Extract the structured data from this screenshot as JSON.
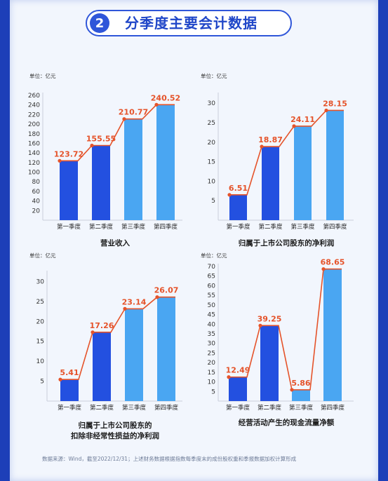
{
  "header": {
    "number": "2",
    "title": "分季度主要会计数据"
  },
  "footnote": "数据来源：Wind，截至2022/12/31；上述财务数据根据指数每季度末的成份股权重和季报数据加权计算形成",
  "colors": {
    "dark_bar": "#2350e0",
    "light_bar": "#4aa6f2",
    "line": "#e5532a",
    "accent": "#2f56d9"
  },
  "chart_data": [
    {
      "type": "bar",
      "unit": "单位：亿元",
      "title": [
        "营业收入"
      ],
      "categories": [
        "第一季度",
        "第二季度",
        "第三季度",
        "第四季度"
      ],
      "values": [
        123.72,
        155.55,
        210.77,
        240.52
      ],
      "value_labels": [
        "123.72",
        "155.55",
        "210.77",
        "240.52"
      ],
      "yticks": [
        "20",
        "40",
        "60",
        "80",
        "100",
        "120",
        "140",
        "160",
        "180",
        "200",
        "220",
        "240",
        "260"
      ],
      "ylim": [
        0,
        260
      ],
      "trend_line": true
    },
    {
      "type": "bar",
      "unit": "单位：亿元",
      "title": [
        "归属于上市公司股东的净利润"
      ],
      "categories": [
        "第一季度",
        "第二季度",
        "第三季度",
        "第四季度"
      ],
      "values": [
        6.51,
        18.87,
        24.11,
        28.15
      ],
      "value_labels": [
        "6.51",
        "18.87",
        "24.11",
        "28.15"
      ],
      "yticks": [
        "5",
        "10",
        "15",
        "20",
        "25",
        "30"
      ],
      "ylim": [
        0,
        32
      ],
      "trend_line": true
    },
    {
      "type": "bar",
      "unit": "单位：亿元",
      "title": [
        "归属于上市公司股东的",
        "扣除非经常性损益的净利润"
      ],
      "categories": [
        "第一季度",
        "第二季度",
        "第三季度",
        "第四季度"
      ],
      "values": [
        5.41,
        17.26,
        23.14,
        26.07
      ],
      "value_labels": [
        "5.41",
        "17.26",
        "23.14",
        "26.07"
      ],
      "yticks": [
        "5",
        "10",
        "15",
        "20",
        "25",
        "30"
      ],
      "ylim": [
        0,
        32
      ],
      "trend_line": true
    },
    {
      "type": "bar",
      "unit": "单位：亿元",
      "title": [
        "经营活动产生的现金流量净额"
      ],
      "categories": [
        "第一季度",
        "第二季度",
        "第三季度",
        "第四季度"
      ],
      "values": [
        12.49,
        39.25,
        5.86,
        68.65
      ],
      "value_labels": [
        "12.49",
        "39.25",
        "5.86",
        "68.65"
      ],
      "yticks": [
        "5",
        "10",
        "15",
        "20",
        "25",
        "30",
        "35",
        "40",
        "45",
        "50",
        "55",
        "60",
        "65",
        "70"
      ],
      "ylim": [
        0,
        70
      ],
      "trend_line": true
    }
  ]
}
